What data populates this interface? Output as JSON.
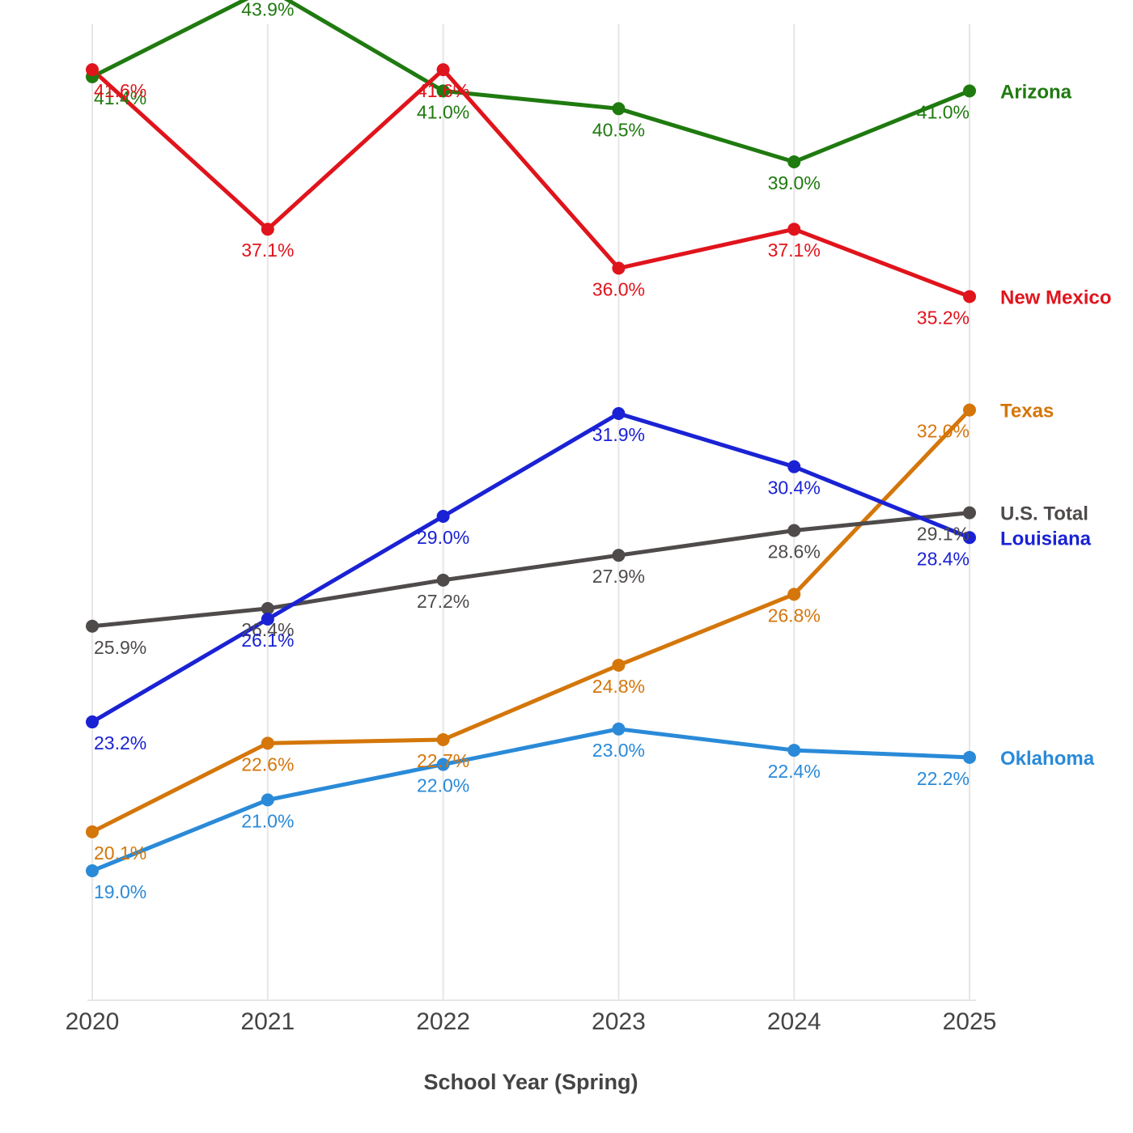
{
  "chart_data": {
    "type": "line",
    "title": "",
    "xlabel": "School Year (Spring)",
    "ylabel": "",
    "x": [
      2020,
      2021,
      2022,
      2023,
      2024,
      2025
    ],
    "grid": {
      "vertical": true,
      "horizontal": false
    },
    "legend": "direct labels at line ends (right)",
    "series": [
      {
        "name": "Arizona",
        "color": "#1f7a0f",
        "values": [
          41.4,
          43.9,
          41.0,
          40.5,
          39.0,
          41.0
        ],
        "labels": [
          "41.4%",
          "43.9%",
          "41.0%",
          "40.5%",
          "39.0%",
          "41.0%"
        ]
      },
      {
        "name": "New Mexico",
        "color": "#e0141c",
        "values": [
          41.6,
          37.1,
          41.6,
          36.0,
          37.1,
          35.2
        ],
        "labels": [
          "41.6%",
          "37.1%",
          "41.6%",
          "36.0%",
          "37.1%",
          "35.2%"
        ]
      },
      {
        "name": "Texas",
        "color": "#d4760a",
        "values": [
          20.1,
          22.6,
          22.7,
          24.8,
          26.8,
          32.0
        ],
        "labels": [
          "20.1%",
          "22.6%",
          "22.7%",
          "24.8%",
          "26.8%",
          "32.0%"
        ]
      },
      {
        "name": "U.S. Total",
        "color": "#4f4b4b",
        "values": [
          25.9,
          26.4,
          27.2,
          27.9,
          28.6,
          29.1
        ],
        "labels": [
          "25.9%",
          "26.4%",
          "27.2%",
          "27.9%",
          "28.6%",
          "29.1%"
        ]
      },
      {
        "name": "Louisiana",
        "color": "#1a22d4",
        "values": [
          23.2,
          26.1,
          29.0,
          31.9,
          30.4,
          28.4
        ],
        "labels": [
          "23.2%",
          "26.1%",
          "29.0%",
          "31.9%",
          "30.4%",
          "28.4%"
        ]
      },
      {
        "name": "Oklahoma",
        "color": "#2a8ad8",
        "values": [
          19.0,
          21.0,
          22.0,
          23.0,
          22.4,
          22.2
        ],
        "labels": [
          "19.0%",
          "21.0%",
          "22.0%",
          "23.0%",
          "22.4%",
          "22.2%"
        ]
      }
    ]
  }
}
